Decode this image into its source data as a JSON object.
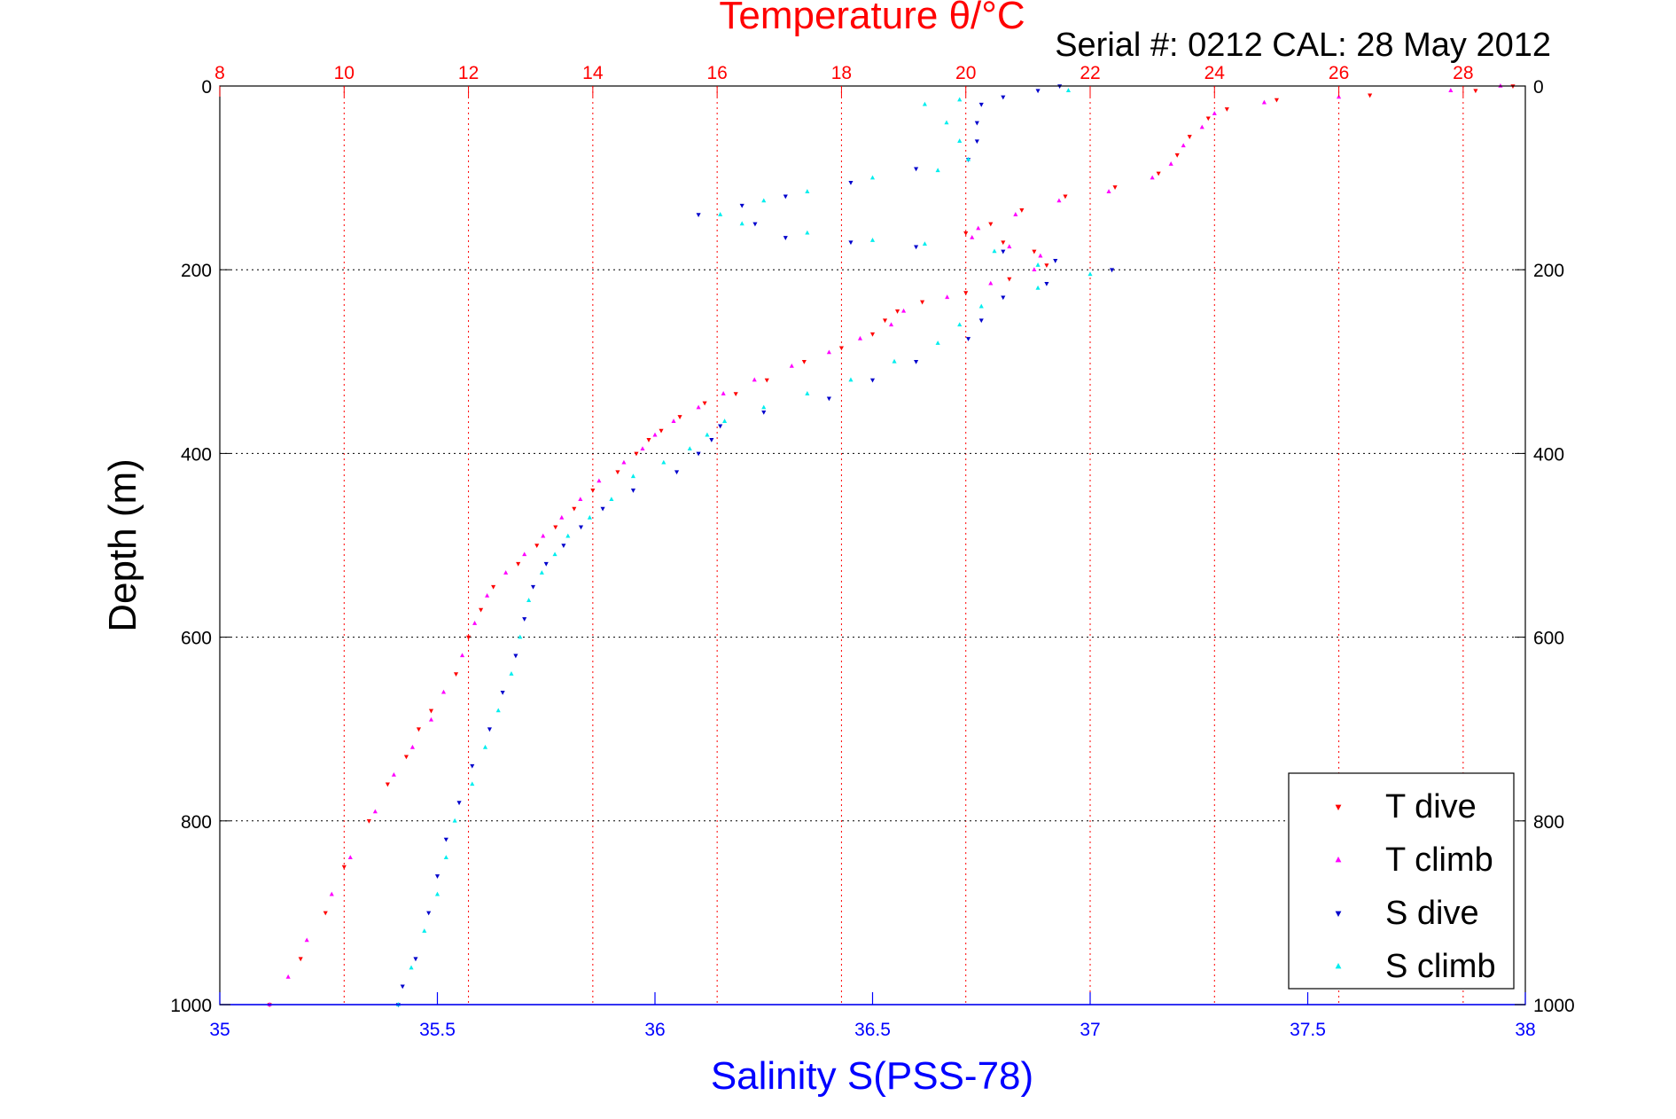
{
  "header": {
    "serial_text": "Serial #: 0212  CAL: 28 May 2012"
  },
  "colors": {
    "t_dive": "#ff0000",
    "t_climb": "#ff00ff",
    "s_dive": "#0000cc",
    "s_climb": "#00eeee",
    "top_axis": "#ff0000",
    "bottom_axis": "#0000ff",
    "grid_vertical": "#ff0000",
    "grid_horizontal": "#000000"
  },
  "chart_data": {
    "type": "scatter",
    "title": "Temperature θ/°C",
    "xlabel": "Salinity S(PSS-78)",
    "ylabel": "Depth (m)",
    "y_axis": {
      "label": "Depth (m)",
      "range": [
        0,
        1000
      ],
      "reversed": true,
      "ticks": [
        0,
        200,
        400,
        600,
        800,
        1000
      ]
    },
    "x_bottom": {
      "label": "Salinity S(PSS-78)",
      "range": [
        35,
        38
      ],
      "ticks": [
        35,
        35.5,
        36,
        36.5,
        37,
        37.5,
        38
      ],
      "tick_labels": [
        "35",
        "35.5",
        "36",
        "36.5",
        "37",
        "37.5",
        "38"
      ]
    },
    "x_top": {
      "label": "Temperature θ/°C",
      "range": [
        8,
        29
      ],
      "ticks": [
        8,
        10,
        12,
        14,
        16,
        18,
        20,
        22,
        24,
        26,
        28
      ]
    },
    "grid": {
      "vertical": "dotted",
      "horizontal": "dotted"
    },
    "legend": {
      "placement": "bottom-right"
    },
    "series": [
      {
        "name": "T dive",
        "axis": "top",
        "marker": "triangle-down",
        "points": [
          [
            28.8,
            0
          ],
          [
            28.2,
            5
          ],
          [
            26.5,
            10
          ],
          [
            25.0,
            15
          ],
          [
            24.2,
            25
          ],
          [
            23.9,
            35
          ],
          [
            23.6,
            55
          ],
          [
            23.4,
            75
          ],
          [
            23.1,
            95
          ],
          [
            22.4,
            110
          ],
          [
            21.6,
            120
          ],
          [
            20.9,
            135
          ],
          [
            20.4,
            150
          ],
          [
            20.0,
            160
          ],
          [
            20.6,
            170
          ],
          [
            21.1,
            180
          ],
          [
            21.3,
            195
          ],
          [
            20.7,
            210
          ],
          [
            20.0,
            225
          ],
          [
            19.3,
            235
          ],
          [
            18.9,
            245
          ],
          [
            18.7,
            255
          ],
          [
            18.5,
            270
          ],
          [
            18.0,
            285
          ],
          [
            17.4,
            300
          ],
          [
            16.8,
            320
          ],
          [
            16.3,
            335
          ],
          [
            15.8,
            345
          ],
          [
            15.4,
            360
          ],
          [
            15.1,
            375
          ],
          [
            14.9,
            385
          ],
          [
            14.7,
            400
          ],
          [
            14.4,
            420
          ],
          [
            14.0,
            440
          ],
          [
            13.7,
            460
          ],
          [
            13.4,
            480
          ],
          [
            13.1,
            500
          ],
          [
            12.8,
            520
          ],
          [
            12.4,
            545
          ],
          [
            12.2,
            570
          ],
          [
            12.0,
            600
          ],
          [
            11.8,
            640
          ],
          [
            11.4,
            680
          ],
          [
            11.2,
            700
          ],
          [
            11.0,
            730
          ],
          [
            10.7,
            760
          ],
          [
            10.4,
            800
          ],
          [
            10.0,
            850
          ],
          [
            9.7,
            900
          ],
          [
            9.3,
            950
          ],
          [
            8.8,
            1000
          ]
        ]
      },
      {
        "name": "T climb",
        "axis": "top",
        "marker": "triangle-up",
        "points": [
          [
            28.6,
            0
          ],
          [
            27.8,
            5
          ],
          [
            26.0,
            12
          ],
          [
            24.8,
            18
          ],
          [
            24.0,
            30
          ],
          [
            23.8,
            45
          ],
          [
            23.5,
            65
          ],
          [
            23.3,
            85
          ],
          [
            23.0,
            100
          ],
          [
            22.3,
            115
          ],
          [
            21.5,
            125
          ],
          [
            20.8,
            140
          ],
          [
            20.2,
            155
          ],
          [
            20.1,
            165
          ],
          [
            20.7,
            175
          ],
          [
            21.2,
            185
          ],
          [
            21.1,
            200
          ],
          [
            20.4,
            215
          ],
          [
            19.7,
            230
          ],
          [
            19.0,
            245
          ],
          [
            18.8,
            260
          ],
          [
            18.3,
            275
          ],
          [
            17.8,
            290
          ],
          [
            17.2,
            305
          ],
          [
            16.6,
            320
          ],
          [
            16.1,
            335
          ],
          [
            15.7,
            350
          ],
          [
            15.3,
            365
          ],
          [
            15.0,
            380
          ],
          [
            14.8,
            395
          ],
          [
            14.5,
            410
          ],
          [
            14.1,
            430
          ],
          [
            13.8,
            450
          ],
          [
            13.5,
            470
          ],
          [
            13.2,
            490
          ],
          [
            12.9,
            510
          ],
          [
            12.6,
            530
          ],
          [
            12.3,
            555
          ],
          [
            12.1,
            585
          ],
          [
            11.9,
            620
          ],
          [
            11.6,
            660
          ],
          [
            11.4,
            690
          ],
          [
            11.1,
            720
          ],
          [
            10.8,
            750
          ],
          [
            10.5,
            790
          ],
          [
            10.1,
            840
          ],
          [
            9.8,
            880
          ],
          [
            9.4,
            930
          ],
          [
            9.1,
            970
          ],
          [
            8.8,
            1000
          ]
        ]
      },
      {
        "name": "S dive",
        "axis": "bottom",
        "marker": "triangle-down",
        "points": [
          [
            36.93,
            0
          ],
          [
            36.88,
            5
          ],
          [
            36.8,
            12
          ],
          [
            36.75,
            20
          ],
          [
            36.74,
            40
          ],
          [
            36.74,
            60
          ],
          [
            36.72,
            80
          ],
          [
            36.6,
            90
          ],
          [
            36.45,
            105
          ],
          [
            36.3,
            120
          ],
          [
            36.2,
            130
          ],
          [
            36.1,
            140
          ],
          [
            36.23,
            150
          ],
          [
            36.3,
            165
          ],
          [
            36.45,
            170
          ],
          [
            36.6,
            175
          ],
          [
            36.8,
            180
          ],
          [
            36.92,
            190
          ],
          [
            37.05,
            200
          ],
          [
            36.9,
            215
          ],
          [
            36.8,
            230
          ],
          [
            36.75,
            255
          ],
          [
            36.72,
            275
          ],
          [
            36.6,
            300
          ],
          [
            36.5,
            320
          ],
          [
            36.4,
            340
          ],
          [
            36.25,
            355
          ],
          [
            36.15,
            370
          ],
          [
            36.13,
            385
          ],
          [
            36.1,
            400
          ],
          [
            36.05,
            420
          ],
          [
            35.95,
            440
          ],
          [
            35.88,
            460
          ],
          [
            35.83,
            480
          ],
          [
            35.79,
            500
          ],
          [
            35.75,
            520
          ],
          [
            35.72,
            545
          ],
          [
            35.7,
            580
          ],
          [
            35.68,
            620
          ],
          [
            35.65,
            660
          ],
          [
            35.62,
            700
          ],
          [
            35.58,
            740
          ],
          [
            35.55,
            780
          ],
          [
            35.52,
            820
          ],
          [
            35.5,
            860
          ],
          [
            35.48,
            900
          ],
          [
            35.45,
            950
          ],
          [
            35.42,
            980
          ],
          [
            35.41,
            1000
          ]
        ]
      },
      {
        "name": "S climb",
        "axis": "bottom",
        "marker": "triangle-up",
        "points": [
          [
            36.95,
            5
          ],
          [
            36.7,
            15
          ],
          [
            36.62,
            20
          ],
          [
            36.67,
            40
          ],
          [
            36.7,
            60
          ],
          [
            36.72,
            80
          ],
          [
            36.65,
            92
          ],
          [
            36.5,
            100
          ],
          [
            36.35,
            115
          ],
          [
            36.25,
            125
          ],
          [
            36.15,
            140
          ],
          [
            36.2,
            150
          ],
          [
            36.35,
            160
          ],
          [
            36.5,
            168
          ],
          [
            36.62,
            172
          ],
          [
            36.78,
            180
          ],
          [
            36.88,
            195
          ],
          [
            37.0,
            205
          ],
          [
            36.88,
            220
          ],
          [
            36.75,
            240
          ],
          [
            36.7,
            260
          ],
          [
            36.65,
            280
          ],
          [
            36.55,
            300
          ],
          [
            36.45,
            320
          ],
          [
            36.35,
            335
          ],
          [
            36.25,
            350
          ],
          [
            36.16,
            365
          ],
          [
            36.12,
            380
          ],
          [
            36.08,
            395
          ],
          [
            36.02,
            410
          ],
          [
            35.95,
            425
          ],
          [
            35.9,
            450
          ],
          [
            35.85,
            470
          ],
          [
            35.8,
            490
          ],
          [
            35.77,
            510
          ],
          [
            35.74,
            530
          ],
          [
            35.71,
            560
          ],
          [
            35.69,
            600
          ],
          [
            35.67,
            640
          ],
          [
            35.64,
            680
          ],
          [
            35.61,
            720
          ],
          [
            35.58,
            760
          ],
          [
            35.54,
            800
          ],
          [
            35.52,
            840
          ],
          [
            35.5,
            880
          ],
          [
            35.47,
            920
          ],
          [
            35.44,
            960
          ],
          [
            35.41,
            1000
          ]
        ]
      }
    ]
  }
}
